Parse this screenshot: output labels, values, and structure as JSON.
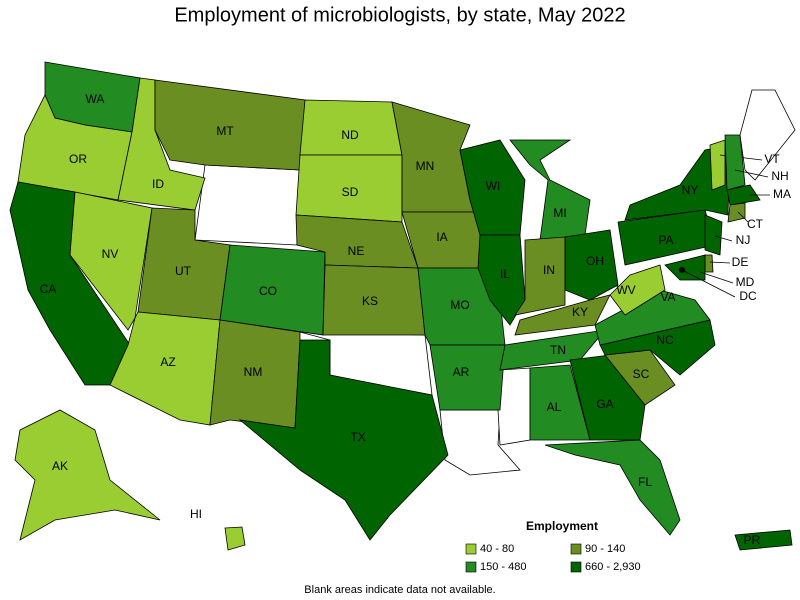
{
  "title": "Employment of microbiologists, by state, May 2022",
  "legend": {
    "title": "Employment",
    "classes": [
      {
        "label": "40 - 80",
        "color": "#9acd32"
      },
      {
        "label": "90 - 140",
        "color": "#6b8e23"
      },
      {
        "label": "150 - 480",
        "color": "#228b22"
      },
      {
        "label": "660 - 2,930",
        "color": "#006400"
      }
    ]
  },
  "states": [
    {
      "label": "WA",
      "class": 2
    },
    {
      "label": "OR",
      "class": 0
    },
    {
      "label": "CA",
      "class": 3
    },
    {
      "label": "NV",
      "class": 0
    },
    {
      "label": "ID",
      "class": 0
    },
    {
      "label": "MT",
      "class": 1
    },
    {
      "label": "UT",
      "class": 1
    },
    {
      "label": "AZ",
      "class": 0
    },
    {
      "label": "CO",
      "class": 2
    },
    {
      "label": "NM",
      "class": 1
    },
    {
      "label": "ND",
      "class": 0
    },
    {
      "label": "SD",
      "class": 0
    },
    {
      "label": "NE",
      "class": 1
    },
    {
      "label": "KS",
      "class": 1
    },
    {
      "label": "TX",
      "class": 3
    },
    {
      "label": "MN",
      "class": 1
    },
    {
      "label": "IA",
      "class": 1
    },
    {
      "label": "MO",
      "class": 2
    },
    {
      "label": "AR",
      "class": 2
    },
    {
      "label": "WI",
      "class": 3
    },
    {
      "label": "IL",
      "class": 3
    },
    {
      "label": "MI",
      "class": 2
    },
    {
      "label": "IN",
      "class": 1
    },
    {
      "label": "OH",
      "class": 3
    },
    {
      "label": "KY",
      "class": 1
    },
    {
      "label": "TN",
      "class": 2
    },
    {
      "label": "AL",
      "class": 2
    },
    {
      "label": "GA",
      "class": 3
    },
    {
      "label": "FL",
      "class": 2
    },
    {
      "label": "SC",
      "class": 1
    },
    {
      "label": "NC",
      "class": 3
    },
    {
      "label": "VA",
      "class": 2
    },
    {
      "label": "WV",
      "class": 0
    },
    {
      "label": "PA",
      "class": 3
    },
    {
      "label": "NY",
      "class": 3
    },
    {
      "label": "VT",
      "class": 0
    },
    {
      "label": "NH",
      "class": 2
    },
    {
      "label": "MA",
      "class": 3
    },
    {
      "label": "CT",
      "class": 1
    },
    {
      "label": "NJ",
      "class": 3
    },
    {
      "label": "DE",
      "class": 1
    },
    {
      "label": "MD",
      "class": 3
    },
    {
      "label": "DC",
      "class": 3
    },
    {
      "label": "AK",
      "class": 0
    },
    {
      "label": "HI",
      "class": 0
    },
    {
      "label": "PR",
      "class": 3
    }
  ],
  "footnote": "Blank areas indicate data not available."
}
